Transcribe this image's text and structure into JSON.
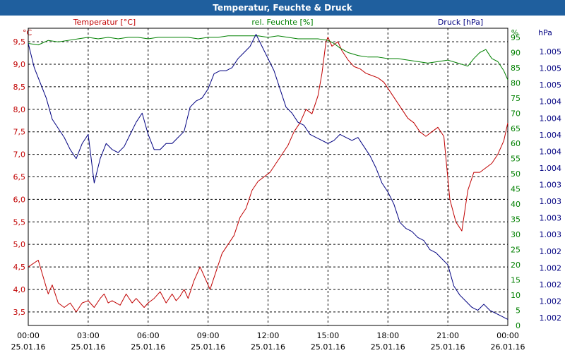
{
  "window": {
    "title": "Temperatur, Feuchte & Druck"
  },
  "chart_data": {
    "type": "line",
    "title": "Temperatur, Feuchte & Druck",
    "x_tick_labels": [
      [
        "00:00",
        "25.01.16"
      ],
      [
        "03:00",
        "25.01.16"
      ],
      [
        "06:00",
        "25.01.16"
      ],
      [
        "09:00",
        "25.01.16"
      ],
      [
        "12:00",
        "25.01.16"
      ],
      [
        "15:00",
        "25.01.16"
      ],
      [
        "18:00",
        "25.01.16"
      ],
      [
        "21:00",
        "25.01.16"
      ],
      [
        "00:00",
        "26.01.16"
      ]
    ],
    "xlim_hours": [
      0,
      24
    ],
    "grid": true,
    "axes": {
      "temperature": {
        "unit": "°C",
        "label": "Temperatur [°C]",
        "ylim": [
          3.2,
          9.8
        ],
        "color": "#c00000",
        "ticks": [
          "3,5",
          "4,0",
          "4,5",
          "5,0",
          "5,5",
          "6,0",
          "6,5",
          "7,0",
          "7,5",
          "8,0",
          "8,5",
          "9,0",
          "9,5"
        ]
      },
      "humidity": {
        "unit": "%",
        "label": "rel. Feuchte [%]",
        "ylim": [
          0,
          98
        ],
        "color": "#008000",
        "ticks": [
          "0",
          "5",
          "10",
          "15",
          "20",
          "25",
          "30",
          "35",
          "40",
          "45",
          "50",
          "55",
          "60",
          "65",
          "70",
          "75",
          "80",
          "85",
          "90",
          "95"
        ]
      },
      "pressure": {
        "unit": "hPa",
        "label": "Druck [hPa]",
        "color": "#000080",
        "ticks": [
          "1.002",
          "1.002",
          "1.002",
          "1.002",
          "1.002",
          "1.003",
          "1.003",
          "1.003",
          "1.003",
          "1.004",
          "1.004",
          "1.004",
          "1.004",
          "1.004",
          "1.005",
          "1.005",
          "1.005"
        ]
      }
    },
    "series": [
      {
        "name": "Temperatur [°C]",
        "axis": "temperature",
        "color": "#c00000",
        "x": [
          0,
          0.5,
          0.8,
          1.0,
          1.2,
          1.5,
          1.8,
          2.1,
          2.4,
          2.7,
          3.0,
          3.3,
          3.6,
          3.8,
          4.0,
          4.2,
          4.6,
          4.9,
          5.2,
          5.4,
          5.6,
          5.8,
          6.0,
          6.3,
          6.6,
          6.9,
          7.2,
          7.4,
          7.6,
          7.8,
          8.0,
          8.3,
          8.6,
          8.9,
          9.1,
          9.4,
          9.7,
          10.0,
          10.3,
          10.6,
          10.9,
          11.2,
          11.5,
          11.8,
          12.1,
          12.4,
          12.7,
          13.0,
          13.3,
          13.6,
          13.9,
          14.2,
          14.5,
          14.7,
          14.9,
          15.0,
          15.2,
          15.5,
          15.7,
          16.0,
          16.3,
          16.6,
          16.9,
          17.2,
          17.5,
          17.8,
          18.1,
          18.4,
          18.7,
          19.0,
          19.3,
          19.6,
          19.9,
          20.2,
          20.5,
          20.8,
          21.1,
          21.4,
          21.7,
          22.0,
          22.3,
          22.6,
          22.9,
          23.2,
          23.5,
          23.8,
          24.0
        ],
        "values": [
          4.5,
          4.65,
          4.2,
          3.9,
          4.1,
          3.7,
          3.6,
          3.7,
          3.5,
          3.7,
          3.75,
          3.6,
          3.8,
          3.9,
          3.7,
          3.75,
          3.65,
          3.9,
          3.7,
          3.8,
          3.7,
          3.6,
          3.7,
          3.8,
          3.95,
          3.7,
          3.9,
          3.75,
          3.85,
          4.0,
          3.8,
          4.2,
          4.5,
          4.2,
          4.0,
          4.4,
          4.8,
          5.0,
          5.2,
          5.6,
          5.8,
          6.2,
          6.4,
          6.5,
          6.6,
          6.8,
          7.0,
          7.2,
          7.5,
          7.7,
          8.0,
          7.9,
          8.3,
          8.8,
          9.5,
          9.6,
          9.4,
          9.5,
          9.3,
          9.1,
          8.95,
          8.9,
          8.8,
          8.75,
          8.7,
          8.6,
          8.4,
          8.2,
          8.0,
          7.8,
          7.7,
          7.5,
          7.4,
          7.5,
          7.6,
          7.4,
          6.0,
          5.5,
          5.3,
          6.2,
          6.6,
          6.6,
          6.7,
          6.8,
          7.0,
          7.3,
          7.7
        ]
      },
      {
        "name": "rel. Feuchte [%]",
        "axis": "humidity",
        "color": "#008000",
        "x": [
          0,
          0.5,
          1.0,
          1.5,
          2.0,
          2.5,
          3.0,
          3.5,
          4.0,
          4.5,
          5.0,
          5.5,
          6.0,
          6.5,
          7.0,
          7.5,
          8.0,
          8.5,
          9.0,
          9.5,
          10.0,
          10.5,
          11.0,
          11.5,
          12.0,
          12.5,
          13.0,
          13.5,
          14.0,
          14.5,
          15.0,
          15.3,
          15.6,
          16.0,
          16.5,
          17.0,
          17.5,
          18.0,
          18.5,
          19.0,
          19.5,
          20.0,
          20.5,
          21.0,
          21.5,
          22.0,
          22.3,
          22.6,
          22.9,
          23.2,
          23.5,
          23.8,
          24.0
        ],
        "values": [
          93,
          92.5,
          94,
          93.5,
          94,
          94.5,
          95,
          94.5,
          95,
          94.5,
          95,
          95,
          94.5,
          95,
          95,
          95,
          95,
          94.5,
          95,
          95,
          95.5,
          95.5,
          95.5,
          95.5,
          95,
          95.5,
          95,
          94.5,
          94.5,
          94.5,
          94,
          93,
          91.5,
          90,
          89,
          88.5,
          88.5,
          88,
          88,
          87.5,
          87,
          86.5,
          87,
          87.5,
          86.5,
          85.5,
          88,
          90,
          91,
          88,
          87,
          84,
          81
        ]
      },
      {
        "name": "Druck [hPa]",
        "axis": "pressure",
        "color": "#000080",
        "x": [
          0,
          0.3,
          0.6,
          0.9,
          1.2,
          1.5,
          1.8,
          2.1,
          2.4,
          2.7,
          3.0,
          3.3,
          3.6,
          3.9,
          4.2,
          4.5,
          4.8,
          5.1,
          5.4,
          5.7,
          6.0,
          6.3,
          6.6,
          6.9,
          7.2,
          7.5,
          7.8,
          8.1,
          8.4,
          8.7,
          9.0,
          9.3,
          9.6,
          9.9,
          10.2,
          10.5,
          10.8,
          11.1,
          11.4,
          11.7,
          12.0,
          12.3,
          12.6,
          12.9,
          13.2,
          13.5,
          13.8,
          14.1,
          14.4,
          14.7,
          15.0,
          15.3,
          15.6,
          15.9,
          16.2,
          16.5,
          16.8,
          17.1,
          17.4,
          17.7,
          18.0,
          18.3,
          18.6,
          18.9,
          19.2,
          19.5,
          19.8,
          20.1,
          20.4,
          20.7,
          21.0,
          21.3,
          21.6,
          21.9,
          22.2,
          22.5,
          22.8,
          23.1,
          23.4,
          23.7,
          24.0
        ],
        "values": [
          93,
          85,
          80,
          75,
          68,
          65,
          62,
          58,
          55,
          60,
          63,
          47,
          55,
          60,
          58,
          57,
          59,
          63,
          67,
          70,
          63,
          58,
          58,
          60,
          60,
          62,
          64,
          72,
          74,
          75,
          78,
          83,
          84,
          84,
          85,
          88,
          90,
          92,
          96,
          92,
          88,
          84,
          78,
          72,
          70,
          67,
          66,
          63,
          62,
          61,
          60,
          61,
          63,
          62,
          61,
          62,
          59,
          56,
          52,
          47,
          44,
          40,
          34,
          32,
          31,
          29,
          28,
          25,
          24,
          22,
          20,
          13,
          10,
          8,
          6,
          5,
          7,
          5,
          4,
          3,
          2
        ]
      }
    ]
  }
}
